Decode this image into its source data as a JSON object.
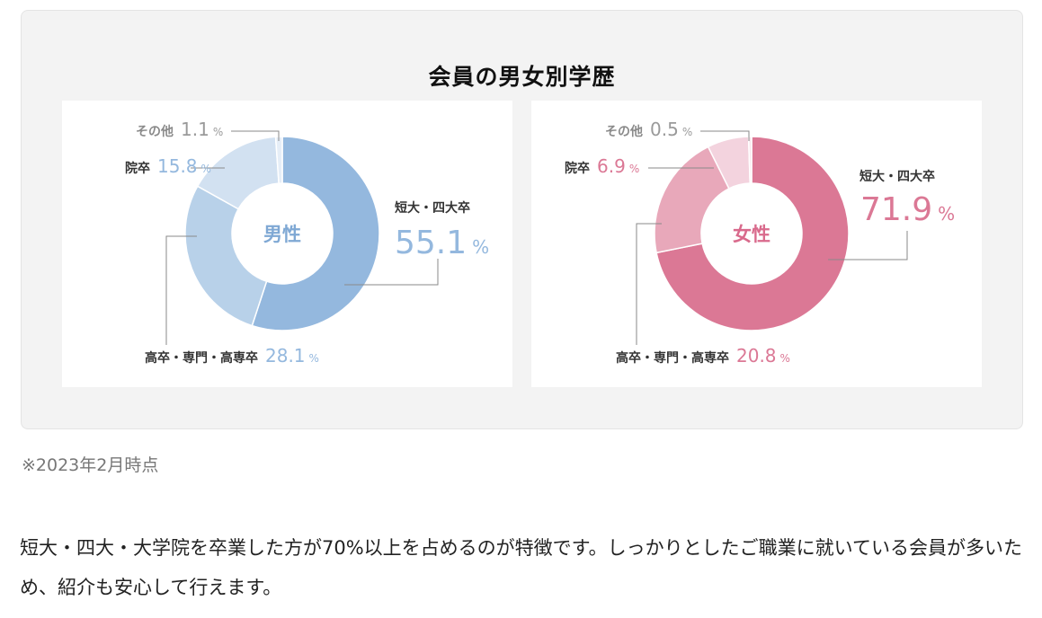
{
  "panel": {
    "title": "会員の男女別学歴"
  },
  "note": "※2023年2月時点",
  "body_text": "短大・四大・大学院を卒業した方が70%以上を占めるのが特徴です。しっかりとしたご職業に就いている会員が多いため、紹介も安心して行えます。",
  "chart_data": [
    {
      "type": "pie",
      "center_label": "男性",
      "unit": "%",
      "categories": [
        "短大・四大卒",
        "高卒・専門・高専卒",
        "院卒",
        "その他"
      ],
      "values": [
        55.1,
        28.1,
        15.8,
        1.1
      ],
      "value_labels": [
        "55.1",
        "28.1",
        "15.8",
        "1.1"
      ],
      "colors": [
        "#94b8de",
        "#b8d1e9",
        "#d2e1f1",
        "#e6eef7"
      ],
      "accent": "#94b8de"
    },
    {
      "type": "pie",
      "center_label": "女性",
      "unit": "%",
      "categories": [
        "短大・四大卒",
        "高卒・専門・高専卒",
        "院卒",
        "その他"
      ],
      "values": [
        71.9,
        20.8,
        6.9,
        0.5
      ],
      "value_labels": [
        "71.9",
        "20.8",
        "6.9",
        "0.5"
      ],
      "colors": [
        "#db7895",
        "#e8a8ba",
        "#f3d3de",
        "#f8e7ed"
      ],
      "accent": "#db7895"
    }
  ]
}
